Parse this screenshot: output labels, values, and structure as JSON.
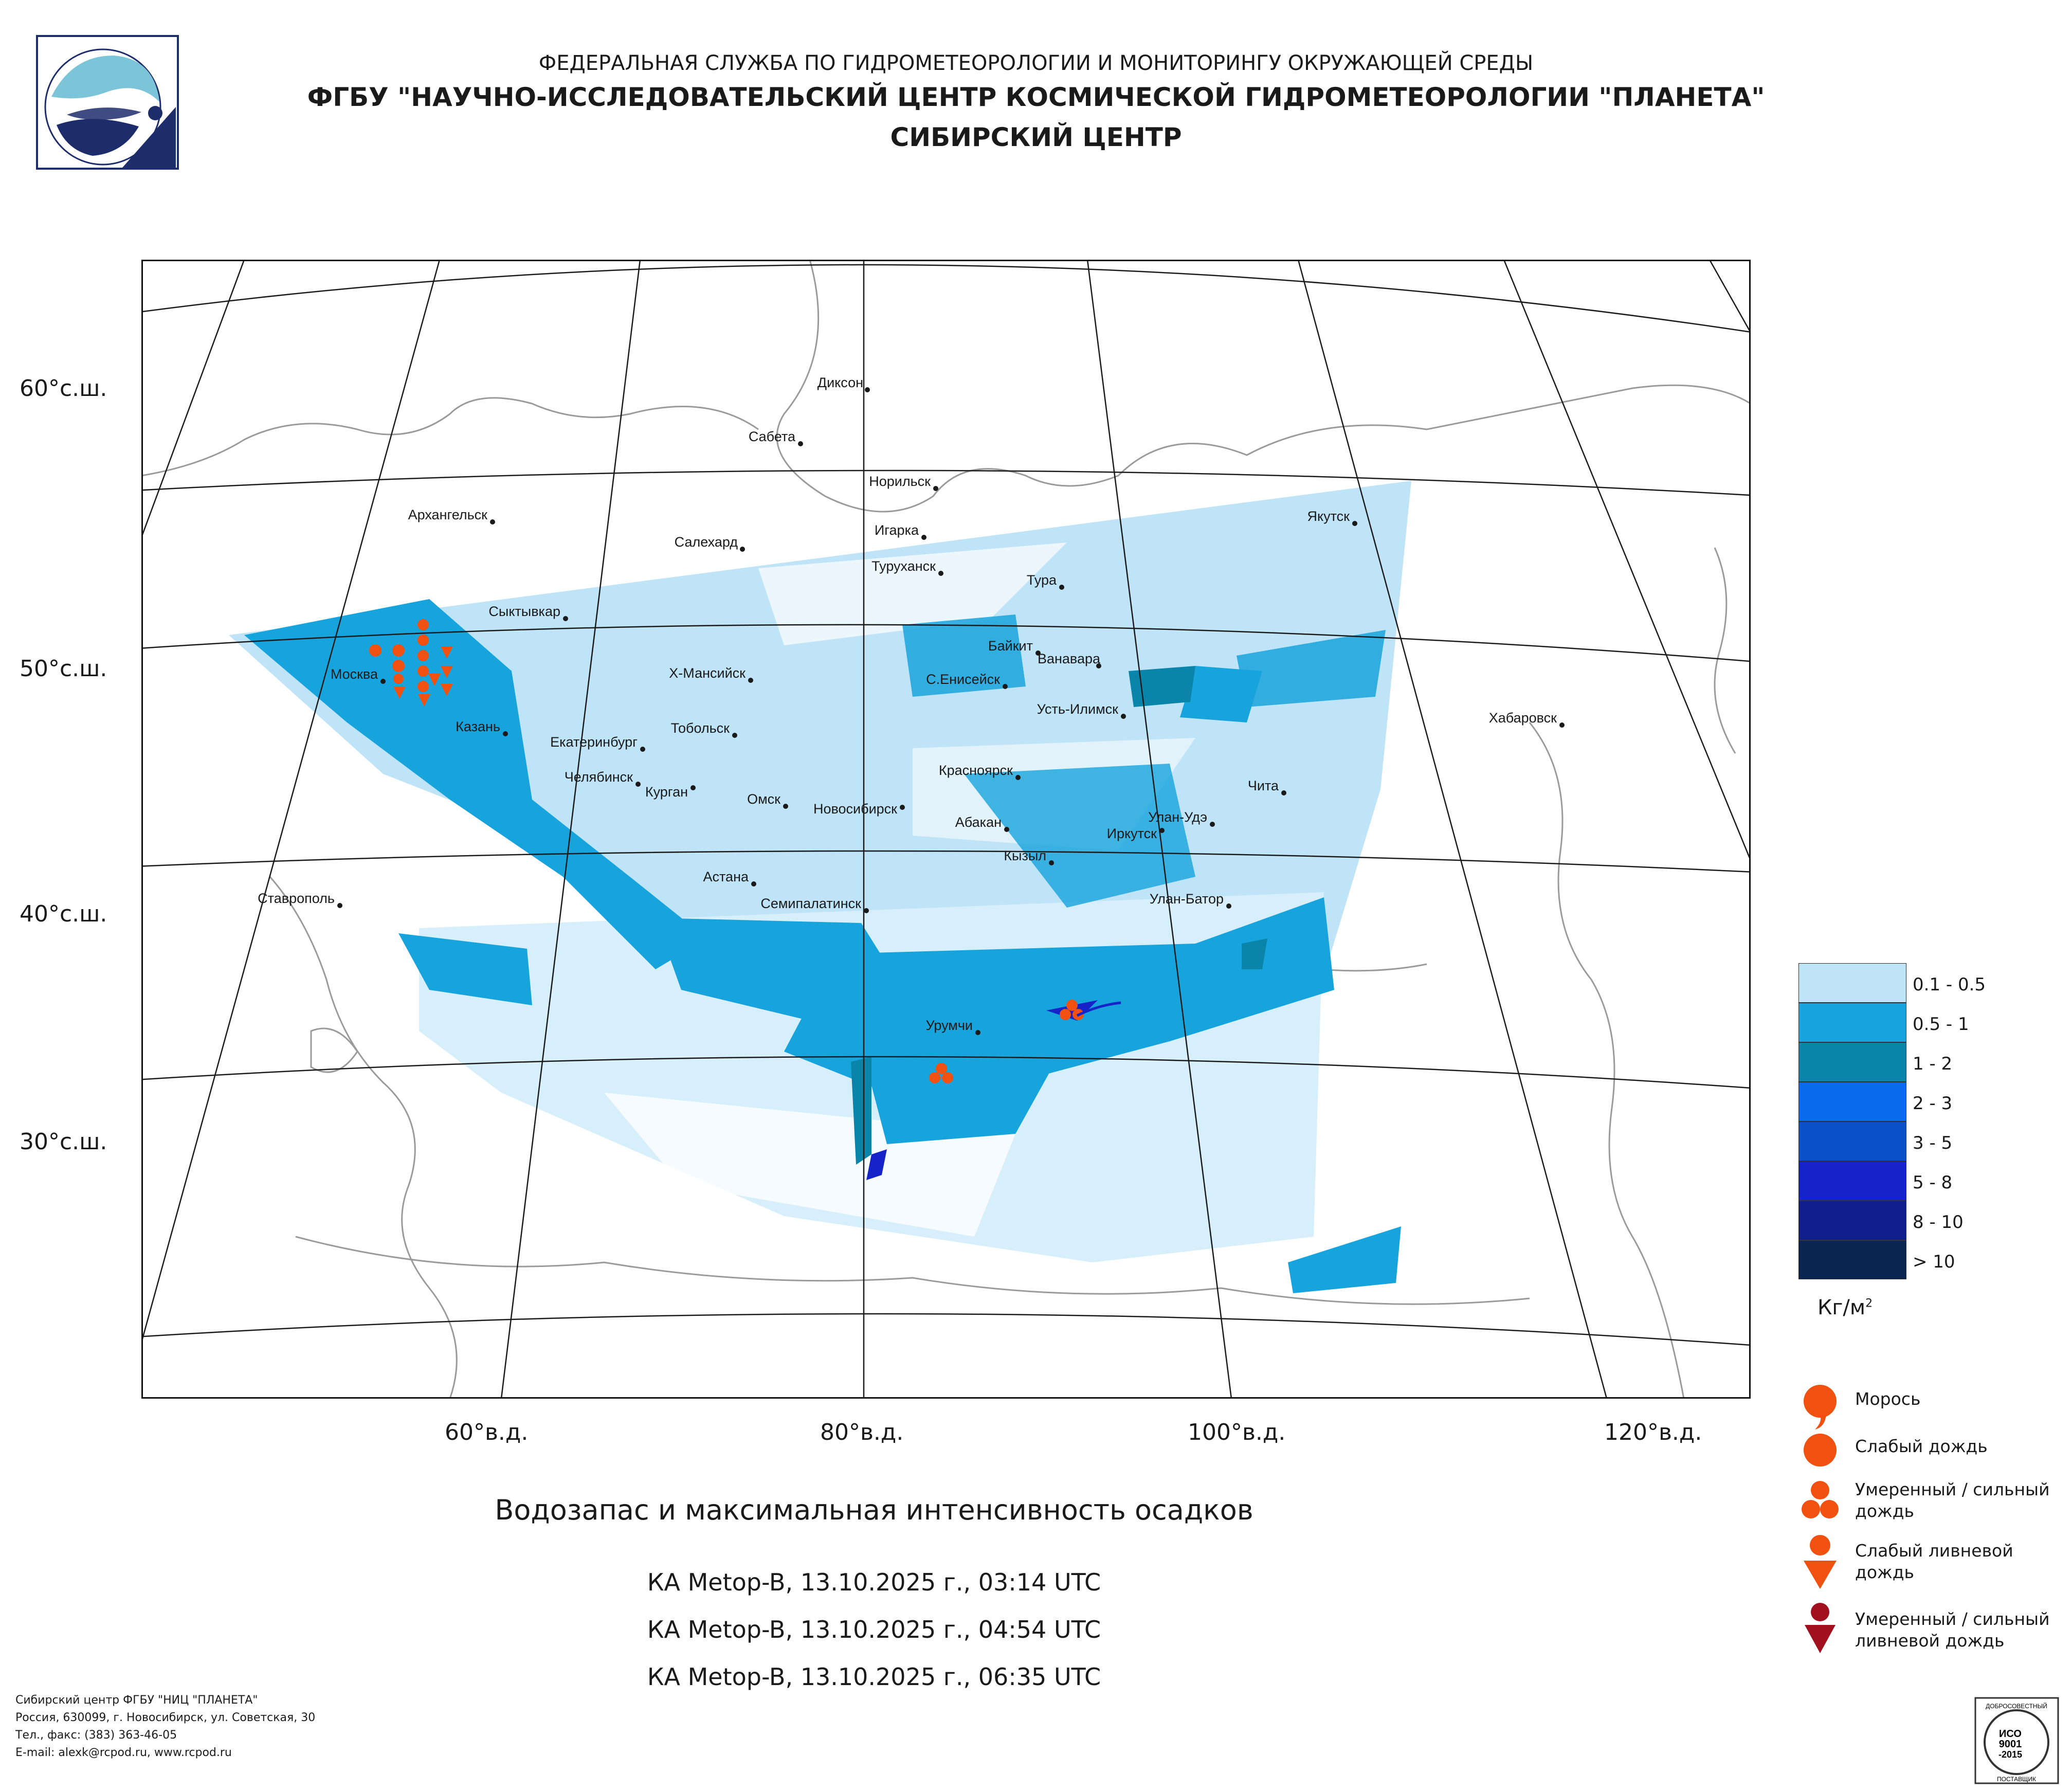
{
  "header": {
    "line1": "ФЕДЕРАЛЬНАЯ СЛУЖБА ПО ГИДРОМЕТЕОРОЛОГИИ И МОНИТОРИНГУ ОКРУЖАЮЩЕЙ СРЕДЫ",
    "line2": "ФГБУ \"НАУЧНО-ИССЛЕДОВАТЕЛЬСКИЙ ЦЕНТР КОСМИЧЕСКОЙ ГИДРОМЕТЕОРОЛОГИИ \"ПЛАНЕТА\"",
    "line3": "СИБИРСКИЙ ЦЕНТР"
  },
  "map": {
    "lat_labels": [
      "60°с.ш.",
      "50°с.ш.",
      "40°с.ш.",
      "30°с.ш."
    ],
    "lon_labels": [
      "60°в.д.",
      "80°в.д.",
      "100°в.д.",
      "120°в.д."
    ],
    "cities": [
      "Диксон",
      "Сабета",
      "Норильск",
      "Архангельск",
      "Игарка",
      "Салехард",
      "Туруханск",
      "Якутск",
      "Тура",
      "Сыктывкар",
      "Байкит",
      "Ванавара",
      "Москва",
      "Х-Мансийск",
      "С.Енисейск",
      "Усть-Илимск",
      "Казань",
      "Тобольск",
      "Хабаровск",
      "Екатеринбург",
      "Красноярск",
      "Челябинск",
      "Чита",
      "Курган",
      "Омск",
      "Новосибирск",
      "Абакан",
      "Улан-Удэ",
      "Иркутск",
      "Кызыл",
      "Ставрополь",
      "Астана",
      "Семипалатинск",
      "Улан-Батор",
      "Урумчи"
    ]
  },
  "legend": {
    "items": [
      {
        "label": "0.1 - 0.5",
        "color": "#bfe3f7"
      },
      {
        "label": "0.5 - 1",
        "color": "#17a3dc"
      },
      {
        "label": "1 - 2",
        "color": "#0a84a8"
      },
      {
        "label": "2 - 3",
        "color": "#0a6af0"
      },
      {
        "label": "3 - 5",
        "color": "#0a50c8"
      },
      {
        "label": "5 - 8",
        "color": "#1523c8"
      },
      {
        "label": "8 - 10",
        "color": "#0f1e8a"
      },
      {
        "label": "> 10",
        "color": "#0a2650"
      }
    ],
    "unit": "Кг/м",
    "unit_sup": "2"
  },
  "symbols": [
    {
      "label1": "Морось",
      "label2": ""
    },
    {
      "label1": "Слабый дождь",
      "label2": ""
    },
    {
      "label1": "Умеренный / сильный",
      "label2": "дождь"
    },
    {
      "label1": "Слабый ливневой",
      "label2": "дождь"
    },
    {
      "label1": "Умеренный / сильный",
      "label2": "ливневой дождь"
    }
  ],
  "caption": "Водозапас и максимальная интенсивность осадков",
  "passes": [
    "КА Metop-B, 13.10.2025 г., 03:14 UTC",
    "КА Metop-B, 13.10.2025 г., 04:54 UTC",
    "КА Metop-B, 13.10.2025 г., 06:35 UTC"
  ],
  "footer": {
    "line1": "Сибирский центр ФГБУ \"НИЦ \"ПЛАНЕТА\"",
    "line2": "Россия, 630099, г. Новосибирск, ул. Советская, 30",
    "line3": "Тел., факс: (383) 363-46-05",
    "line4": "E-mail: alexk@rcpod.ru, www.rcpod.ru"
  },
  "iso": {
    "top": "ДОБРОСОВЕСТНЫЙ",
    "l1": "ИСО",
    "l2": "9001",
    "l3": "-2015",
    "bottom": "ПОСТАВЩИК"
  },
  "colors": {
    "drizzle": "#f05010",
    "light_rain": "#f05010",
    "moderate_rain": "#f05010",
    "light_shower": "#f05010",
    "heavy_shower": "#a0101e"
  }
}
